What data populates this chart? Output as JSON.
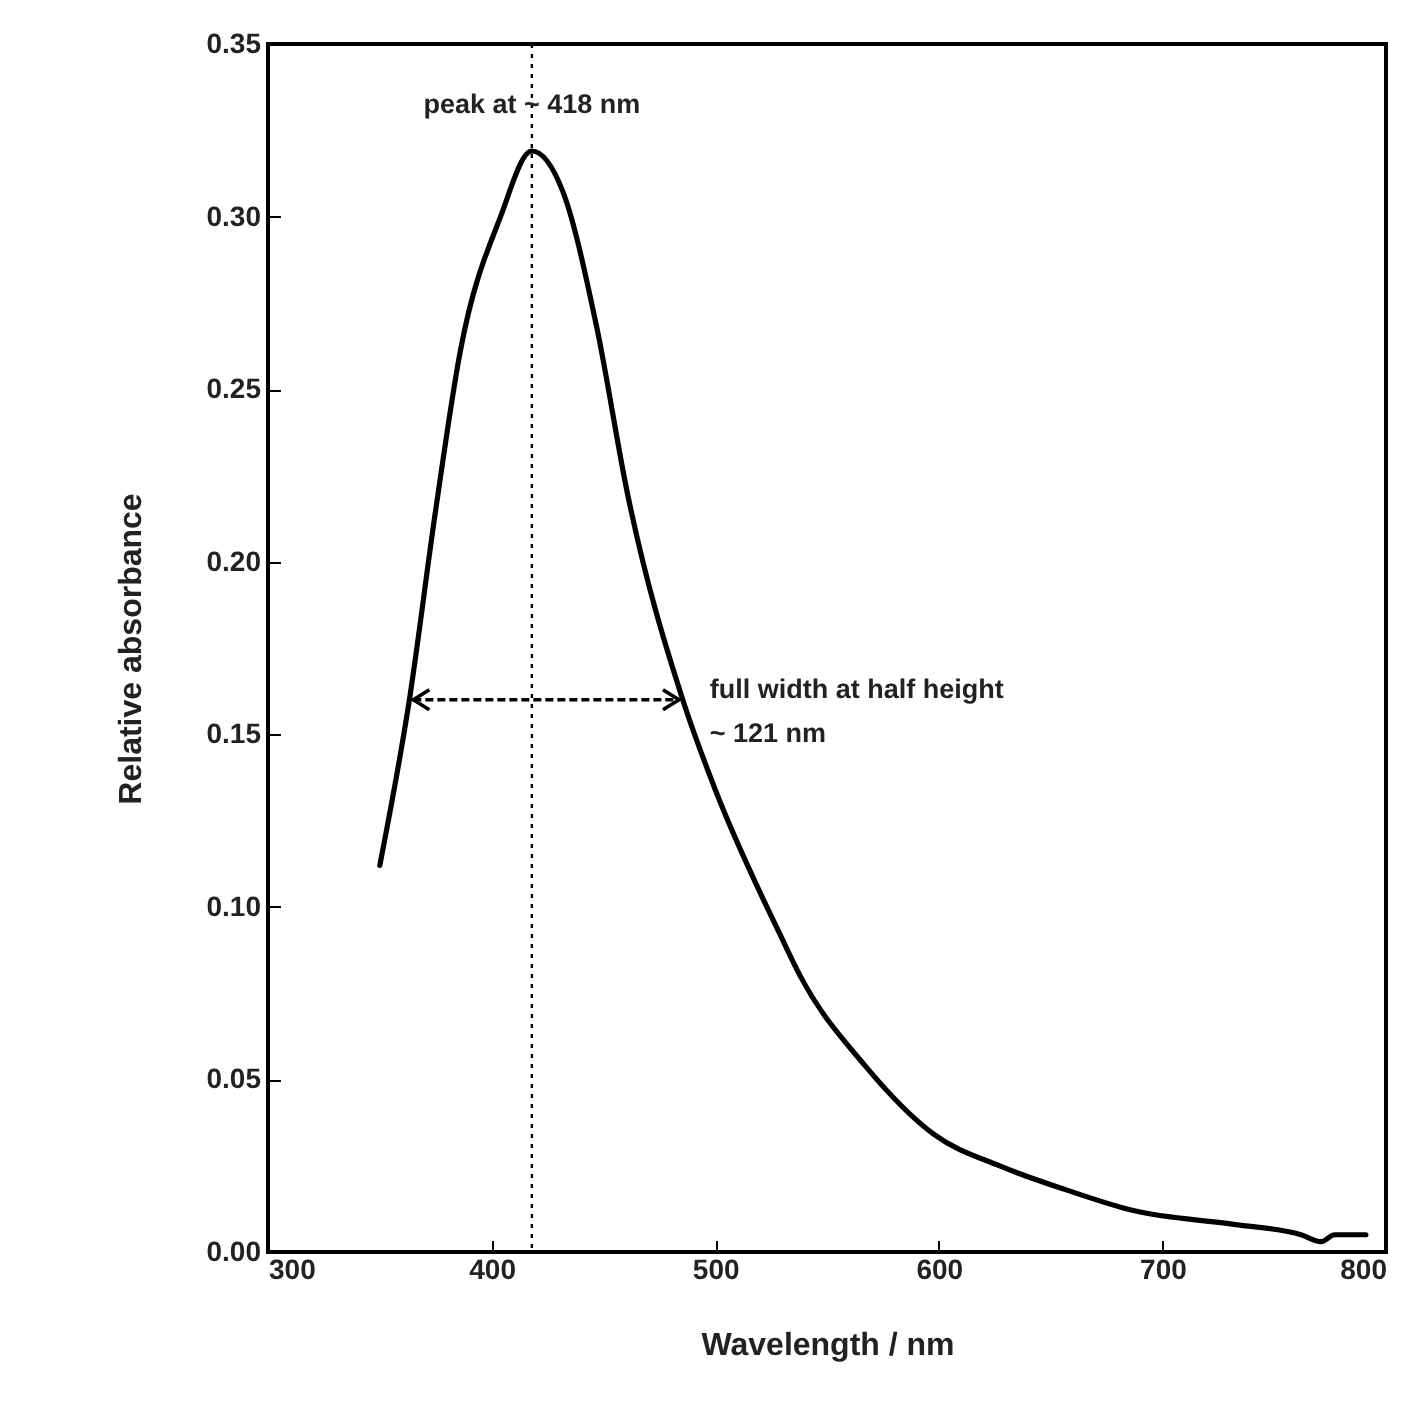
{
  "chart_data": {
    "type": "line",
    "xlabel": "Wavelength / nm",
    "ylabel": "Relative absorbance",
    "xlim": [
      300,
      800
    ],
    "xticks": [
      300,
      400,
      500,
      600,
      700,
      800
    ],
    "ylim": [
      0,
      0.35
    ],
    "yticks": [
      {
        "value": 0,
        "label": "0.00"
      },
      0.05,
      {
        "value": 0.1,
        "label": "0.10"
      },
      0.15,
      {
        "value": 0.2,
        "label": "0.20"
      },
      0.25,
      {
        "value": 0.3,
        "label": "0.30"
      },
      0.35
    ],
    "grid": false,
    "marker": "none",
    "line_style": "solid",
    "series": [
      {
        "color": "#000000",
        "x": [
          350,
          363,
          375,
          386,
          404,
          418,
          432,
          447,
          461,
          486,
          500,
          529,
          538,
          567,
          598,
          627,
          657,
          687,
          732,
          762,
          771,
          777,
          791
        ],
        "values": [
          0.112,
          0.159,
          0.215,
          0.261,
          0.3,
          0.319,
          0.307,
          0.268,
          0.219,
          0.159,
          0.134,
          0.092,
          0.08,
          0.054,
          0.034,
          0.025,
          0.018,
          0.012,
          0.008,
          0.005,
          0.003,
          0.005,
          0.005
        ]
      }
    ],
    "ref_lines": [
      {
        "axis": "x",
        "value": 418,
        "line_style": "dotted",
        "color": "#000000"
      }
    ],
    "annotations": [
      {
        "text": "peak at ~ 418 nm",
        "x": 418,
        "y": 0.319
      },
      {
        "text": "full width at half height\n~ 121 nm",
        "x": 485,
        "y": 0.16
      }
    ]
  }
}
